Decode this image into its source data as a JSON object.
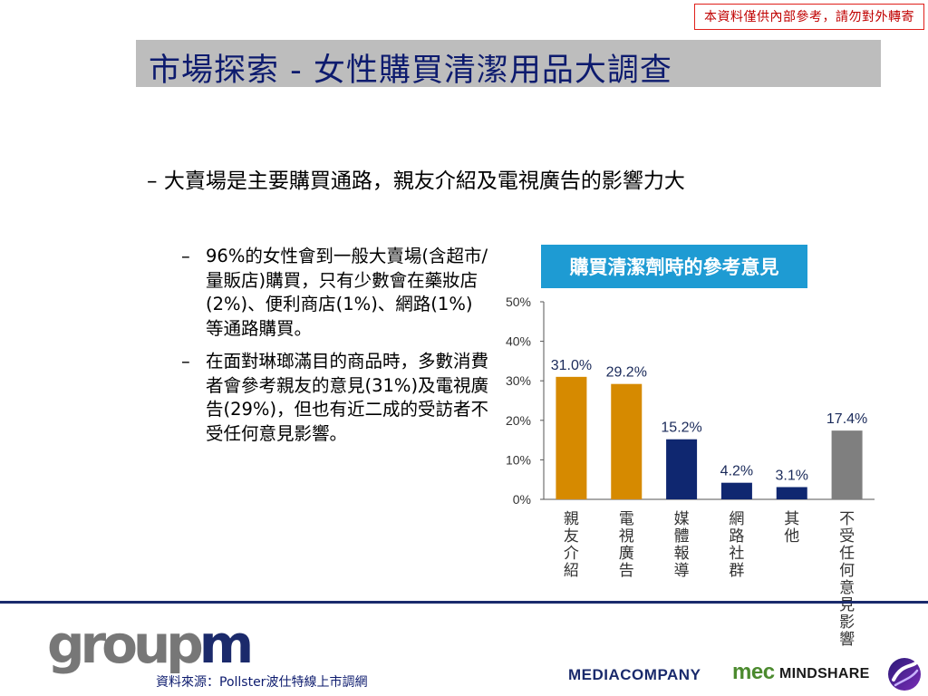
{
  "header": {
    "disclaimer": "本資料僅供內部參考，請勿對外轉寄",
    "title": "市場探索 - 女性購買清潔用品大調查"
  },
  "headline": "大賣場是主要購買通路，親友介紹及電視廣告的影響力大",
  "bullets": [
    "96%的女性會到一般大賣場(含超市/量販店)購買，只有少數會在藥妝店(2%)、便利商店(1%)、網路(1%)等通路購買。",
    "在面對琳瑯滿目的商品時，多數消費者會參考親友的意見(31%)及電視廣告(29%)，但也有近二成的受訪者不受任何意見影響。"
  ],
  "footer": {
    "logo_text_gray": "group",
    "logo_text_blue": "m",
    "source": "資料來源：Pollster波仕特線上市調網",
    "partner_logos": [
      "MEDIACOMPANY",
      "mec",
      "MINDSHARE"
    ]
  },
  "colors": {
    "title_text": "#0d1b6e",
    "chart_title_bg": "#1e9bd3",
    "bar_orange": "#d68a00",
    "bar_navy": "#0f2770",
    "bar_gray": "#7f7f7f",
    "disclaimer_border": "#e0201a"
  },
  "chart_data": {
    "type": "bar",
    "title": "購買清潔劑時的參考意見",
    "categories": [
      "親友介紹",
      "電視廣告",
      "媒體報導",
      "網路社群",
      "其他",
      "不受任何意見影響"
    ],
    "values": [
      31.0,
      29.2,
      15.2,
      4.2,
      3.1,
      17.4
    ],
    "value_labels": [
      "31.0%",
      "29.2%",
      "15.2%",
      "4.2%",
      "3.1%",
      "17.4%"
    ],
    "bar_colors": [
      "#d68a00",
      "#d68a00",
      "#0f2770",
      "#0f2770",
      "#0f2770",
      "#7f7f7f"
    ],
    "ylim": [
      0,
      50
    ],
    "yticks": [
      "0%",
      "10%",
      "20%",
      "30%",
      "40%",
      "50%"
    ],
    "grid": false,
    "legend": "none"
  }
}
